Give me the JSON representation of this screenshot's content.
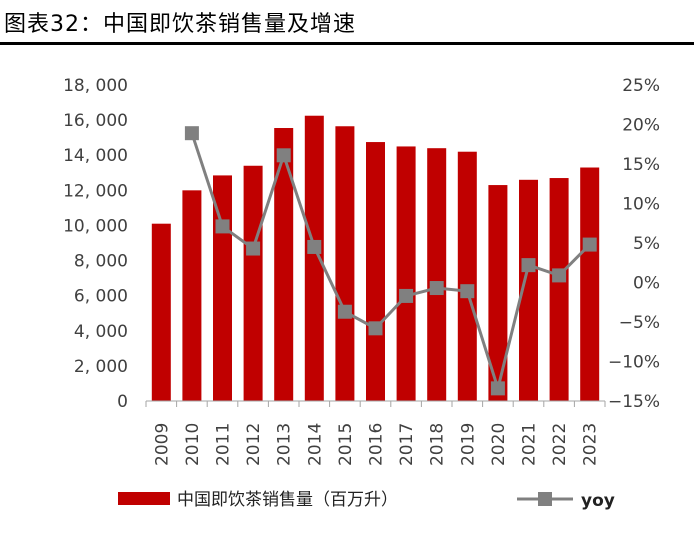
{
  "title": "图表32：中国即饮茶销售量及增速",
  "chart_data": {
    "type": "bar",
    "categories": [
      "2009",
      "2010",
      "2011",
      "2012",
      "2013",
      "2014",
      "2015",
      "2016",
      "2017",
      "2018",
      "2019",
      "2020",
      "2021",
      "2022",
      "2023"
    ],
    "series": [
      {
        "name": "中国即饮茶销售量（百万升）",
        "kind": "bar",
        "axis": "left",
        "color": "#C00000",
        "values": [
          10100,
          12000,
          12850,
          13400,
          15550,
          16250,
          15650,
          14750,
          14500,
          14400,
          14200,
          12300,
          12600,
          12700,
          13300
        ]
      },
      {
        "name": "yoy",
        "kind": "line",
        "axis": "right",
        "color": "#808080",
        "values": [
          null,
          18.9,
          7.1,
          4.3,
          16.1,
          4.5,
          -3.7,
          -5.8,
          -1.7,
          -0.7,
          -1.1,
          -13.4,
          2.2,
          0.9,
          4.8
        ]
      }
    ],
    "y_left": {
      "min": 0,
      "max": 18000,
      "step": 2000,
      "tick_labels": [
        "0",
        "2, 000",
        "4, 000",
        "6, 000",
        "8, 000",
        "10, 000",
        "12, 000",
        "14, 000",
        "16, 000",
        "18, 000"
      ]
    },
    "y_right": {
      "min": -15,
      "max": 25,
      "step": 5,
      "tick_labels": [
        "−15%",
        "−10%",
        "−5%",
        "0%",
        "5%",
        "10%",
        "15%",
        "20%",
        "25%"
      ]
    },
    "legend": {
      "position": "bottom",
      "bar_label": "中国即饮茶销售量（百万升）",
      "line_label": "yoy"
    },
    "grid": false
  }
}
